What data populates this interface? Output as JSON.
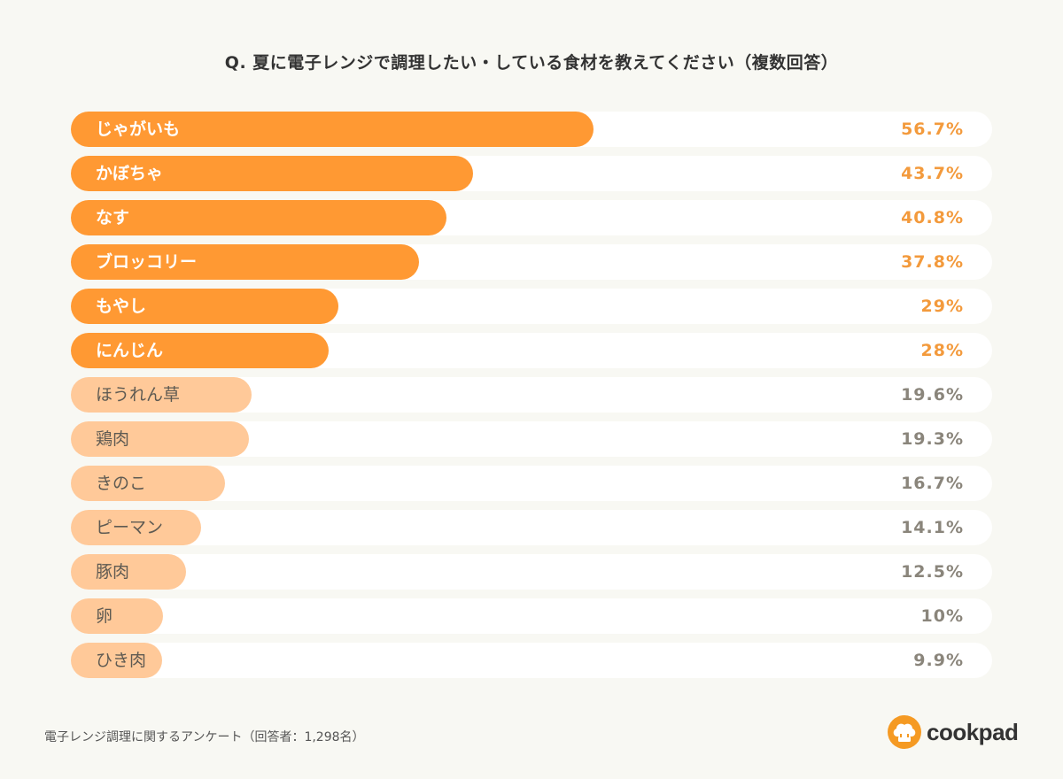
{
  "chart_data": {
    "type": "bar",
    "orientation": "horizontal",
    "title": "Q. 夏に電子レンジで調理したい・している食材を教えてください（複数回答）",
    "categories": [
      "じゃがいも",
      "かぼちゃ",
      "なす",
      "ブロッコリー",
      "もやし",
      "にんじん",
      "ほうれん草",
      "鶏肉",
      "きのこ",
      "ピーマン",
      "豚肉",
      "卵",
      "ひき肉"
    ],
    "values": [
      56.7,
      43.7,
      40.8,
      37.8,
      29,
      28,
      19.6,
      19.3,
      16.7,
      14.1,
      12.5,
      10,
      9.9
    ],
    "value_labels": [
      "56.7%",
      "43.7%",
      "40.8%",
      "37.8%",
      "29%",
      "28%",
      "19.6%",
      "19.3%",
      "16.7%",
      "14.1%",
      "12.5%",
      "10%",
      "9.9%"
    ],
    "highlighted_count": 6,
    "xlim": [
      0,
      100
    ],
    "colors": {
      "highlight": "#ff9933",
      "normal": "#ffc999",
      "track": "#ffffff"
    }
  },
  "footnote": "電子レンジ調理に関するアンケート（回答者：1,298名）",
  "logo": {
    "text": "cookpad",
    "icon": "chef-hat-icon"
  }
}
